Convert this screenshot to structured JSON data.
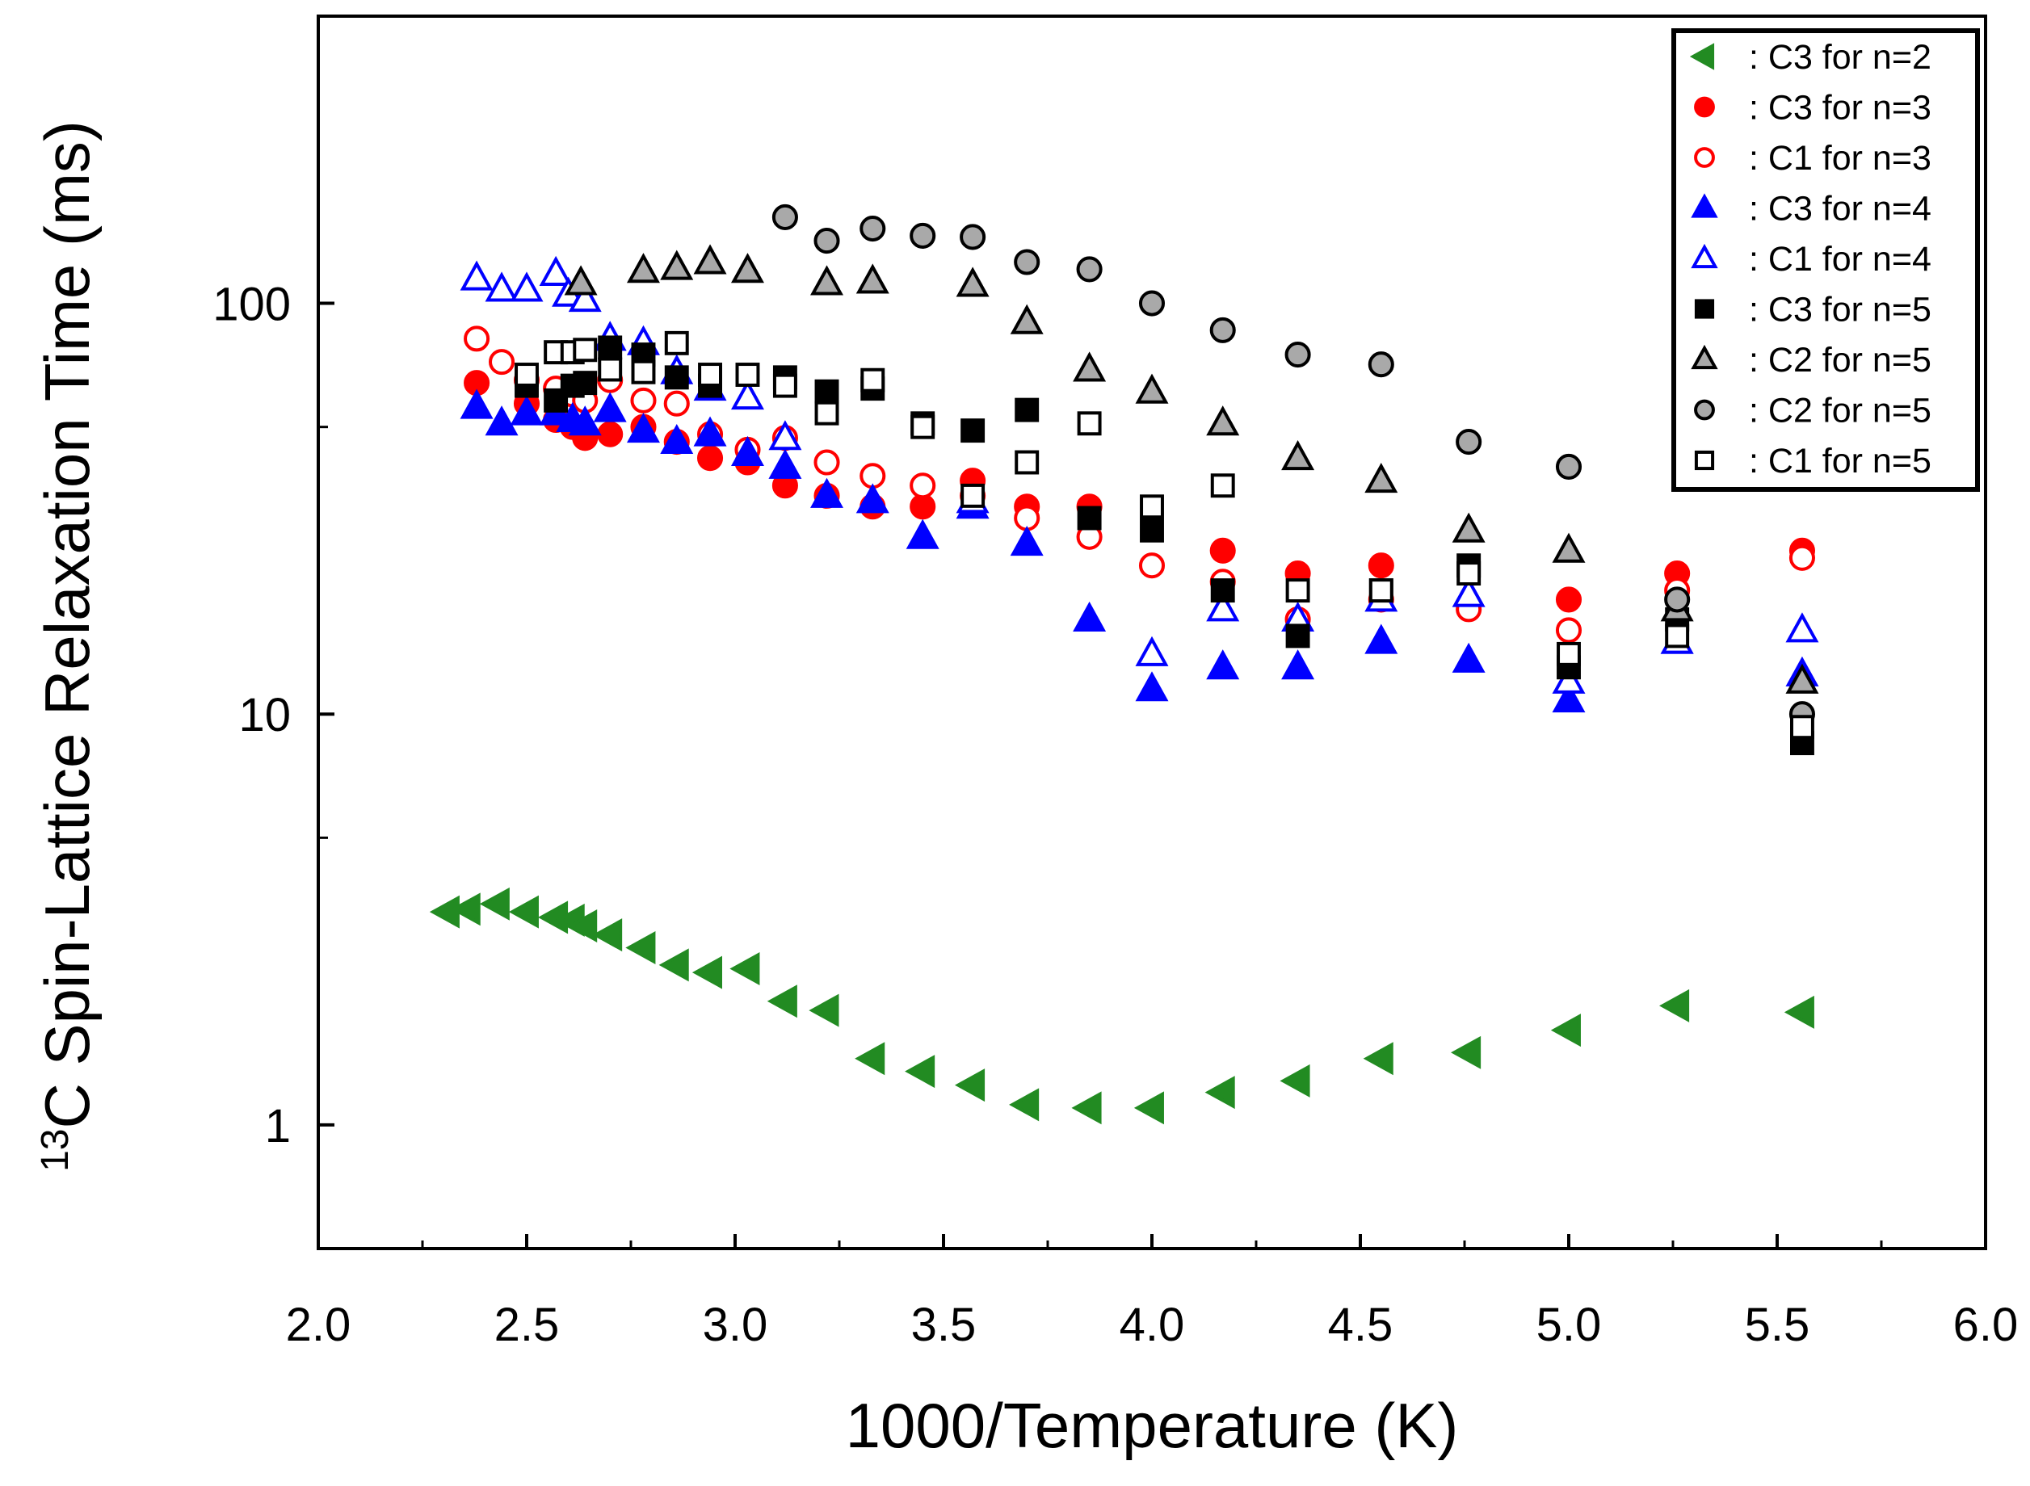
{
  "chart_data": {
    "type": "scatter",
    "title": "",
    "xlabel": "1000/Temperature (K)",
    "ylabel_sup": "13",
    "ylabel": "C Spin-Lattice Relaxation Time (ms)",
    "xlim": [
      2.0,
      6.0
    ],
    "ylim": [
      0.5,
      500
    ],
    "yscale": "log",
    "grid": false,
    "legend_position": "top-right",
    "x_ticks": [
      "2.0",
      "2.5",
      "3.0",
      "3.5",
      "4.0",
      "4.5",
      "5.0",
      "5.5",
      "6.0"
    ],
    "y_ticks": [
      "1",
      "10",
      "100"
    ],
    "series": [
      {
        "name": ": C3 for n=2",
        "marker": "triangle-left",
        "color": "#228b22",
        "filled": true,
        "points": [
          [
            2.31,
            3.3
          ],
          [
            2.36,
            3.35
          ],
          [
            2.43,
            3.45
          ],
          [
            2.5,
            3.3
          ],
          [
            2.57,
            3.2
          ],
          [
            2.61,
            3.15
          ],
          [
            2.64,
            3.05
          ],
          [
            2.7,
            2.9
          ],
          [
            2.78,
            2.7
          ],
          [
            2.86,
            2.45
          ],
          [
            2.94,
            2.35
          ],
          [
            3.03,
            2.4
          ],
          [
            3.12,
            2.0
          ],
          [
            3.22,
            1.9
          ],
          [
            3.33,
            1.45
          ],
          [
            3.45,
            1.35
          ],
          [
            3.57,
            1.25
          ],
          [
            3.7,
            1.12
          ],
          [
            3.85,
            1.1
          ],
          [
            4.0,
            1.1
          ],
          [
            4.17,
            1.2
          ],
          [
            4.35,
            1.28
          ],
          [
            4.55,
            1.45
          ],
          [
            4.76,
            1.5
          ],
          [
            5.0,
            1.7
          ],
          [
            5.26,
            1.95
          ],
          [
            5.56,
            1.88
          ]
        ]
      },
      {
        "name": ": C3 for n=3",
        "marker": "circle",
        "color": "#ff0000",
        "filled": true,
        "points": [
          [
            2.38,
            64
          ],
          [
            2.5,
            57
          ],
          [
            2.57,
            52
          ],
          [
            2.61,
            50
          ],
          [
            2.64,
            47
          ],
          [
            2.7,
            48
          ],
          [
            2.78,
            50
          ],
          [
            2.86,
            46
          ],
          [
            2.94,
            42
          ],
          [
            3.03,
            41
          ],
          [
            3.12,
            36
          ],
          [
            3.22,
            34
          ],
          [
            3.33,
            32
          ],
          [
            3.45,
            32
          ],
          [
            3.57,
            37
          ],
          [
            3.7,
            32
          ],
          [
            3.85,
            32
          ],
          [
            4.17,
            25
          ],
          [
            4.35,
            22
          ],
          [
            4.55,
            23
          ],
          [
            5.0,
            19
          ],
          [
            5.26,
            22
          ],
          [
            5.56,
            25
          ]
        ]
      },
      {
        "name": ": C1 for n=3",
        "marker": "circle",
        "color": "#ff0000",
        "filled": false,
        "points": [
          [
            2.38,
            82
          ],
          [
            2.44,
            72
          ],
          [
            2.5,
            65
          ],
          [
            2.57,
            62
          ],
          [
            2.61,
            60
          ],
          [
            2.64,
            58
          ],
          [
            2.7,
            65
          ],
          [
            2.78,
            58
          ],
          [
            2.86,
            57
          ],
          [
            2.94,
            48
          ],
          [
            3.03,
            44
          ],
          [
            3.12,
            47
          ],
          [
            3.22,
            41
          ],
          [
            3.33,
            38
          ],
          [
            3.45,
            36
          ],
          [
            3.57,
            34
          ],
          [
            3.7,
            30
          ],
          [
            3.85,
            27
          ],
          [
            4.0,
            23
          ],
          [
            4.17,
            21
          ],
          [
            4.35,
            17
          ],
          [
            4.55,
            19
          ],
          [
            4.76,
            18
          ],
          [
            5.0,
            16
          ],
          [
            5.26,
            20
          ],
          [
            5.56,
            24
          ]
        ]
      },
      {
        "name": ": C3 for n=4",
        "marker": "triangle-up",
        "color": "#0000ff",
        "filled": true,
        "points": [
          [
            2.38,
            56
          ],
          [
            2.44,
            51
          ],
          [
            2.5,
            54
          ],
          [
            2.57,
            54
          ],
          [
            2.61,
            52
          ],
          [
            2.64,
            51
          ],
          [
            2.7,
            55
          ],
          [
            2.78,
            49
          ],
          [
            2.86,
            46
          ],
          [
            2.94,
            48
          ],
          [
            3.03,
            43
          ],
          [
            3.12,
            40
          ],
          [
            3.22,
            34
          ],
          [
            3.33,
            33
          ],
          [
            3.45,
            27
          ],
          [
            3.57,
            32
          ],
          [
            3.7,
            26
          ],
          [
            3.85,
            17
          ],
          [
            4.0,
            11.5
          ],
          [
            4.17,
            13
          ],
          [
            4.35,
            13
          ],
          [
            4.55,
            15
          ],
          [
            4.76,
            13.5
          ],
          [
            5.0,
            10.8
          ],
          [
            5.26,
            15
          ],
          [
            5.56,
            12.5
          ]
        ]
      },
      {
        "name": ": C1 for n=4",
        "marker": "triangle-up",
        "color": "#0000ff",
        "filled": false,
        "points": [
          [
            2.38,
            115
          ],
          [
            2.44,
            108
          ],
          [
            2.5,
            108
          ],
          [
            2.57,
            118
          ],
          [
            2.6,
            105
          ],
          [
            2.64,
            102
          ],
          [
            2.7,
            82
          ],
          [
            2.78,
            80
          ],
          [
            2.86,
            68
          ],
          [
            2.94,
            62
          ],
          [
            3.03,
            59
          ],
          [
            3.12,
            47
          ],
          [
            3.57,
            33
          ],
          [
            4.0,
            14
          ],
          [
            4.17,
            18
          ],
          [
            4.35,
            17
          ],
          [
            4.55,
            19
          ],
          [
            4.76,
            19.5
          ],
          [
            5.0,
            12
          ],
          [
            5.26,
            15
          ],
          [
            5.56,
            16
          ]
        ]
      },
      {
        "name": ": C3 for n=5",
        "marker": "square",
        "color": "#000000",
        "filled": true,
        "points": [
          [
            2.5,
            63
          ],
          [
            2.57,
            58
          ],
          [
            2.61,
            63
          ],
          [
            2.64,
            64
          ],
          [
            2.7,
            78
          ],
          [
            2.78,
            75
          ],
          [
            2.86,
            66
          ],
          [
            2.94,
            63
          ],
          [
            3.12,
            66
          ],
          [
            3.22,
            61
          ],
          [
            3.33,
            62
          ],
          [
            3.45,
            51
          ],
          [
            3.57,
            49
          ],
          [
            3.7,
            55
          ],
          [
            3.85,
            30
          ],
          [
            4.0,
            28
          ],
          [
            4.17,
            20
          ],
          [
            4.35,
            15.5
          ],
          [
            4.55,
            20
          ],
          [
            4.76,
            23
          ],
          [
            5.0,
            13
          ],
          [
            5.26,
            17
          ],
          [
            5.56,
            8.5
          ]
        ]
      },
      {
        "name": ": C2 for n=5",
        "marker": "triangle-up",
        "color": "#000000",
        "fill": "#a9a9a9",
        "filled": true,
        "points": [
          [
            2.63,
            112
          ],
          [
            2.78,
            120
          ],
          [
            2.86,
            122
          ],
          [
            2.94,
            126
          ],
          [
            3.03,
            120
          ],
          [
            3.22,
            112
          ],
          [
            3.33,
            113
          ],
          [
            3.57,
            111
          ],
          [
            3.7,
            90
          ],
          [
            3.85,
            69
          ],
          [
            4.0,
            61
          ],
          [
            4.17,
            51
          ],
          [
            4.35,
            42
          ],
          [
            4.55,
            37
          ],
          [
            4.76,
            28
          ],
          [
            5.0,
            25
          ],
          [
            5.26,
            18
          ],
          [
            5.56,
            12
          ]
        ]
      },
      {
        "name": ": C2 for n=5",
        "marker": "circle",
        "color": "#000000",
        "fill": "#a9a9a9",
        "filled": true,
        "points": [
          [
            3.12,
            162
          ],
          [
            3.22,
            142
          ],
          [
            3.33,
            152
          ],
          [
            3.45,
            146
          ],
          [
            3.57,
            145
          ],
          [
            3.7,
            126
          ],
          [
            3.85,
            121
          ],
          [
            4.0,
            100
          ],
          [
            4.17,
            86
          ],
          [
            4.35,
            75
          ],
          [
            4.55,
            71
          ],
          [
            4.76,
            46
          ],
          [
            5.0,
            40
          ],
          [
            5.26,
            19
          ],
          [
            5.56,
            10
          ]
        ]
      },
      {
        "name": ": C1 for n=5",
        "marker": "square",
        "color": "#000000",
        "filled": false,
        "points": [
          [
            2.5,
            67
          ],
          [
            2.57,
            76
          ],
          [
            2.61,
            76
          ],
          [
            2.64,
            77
          ],
          [
            2.7,
            69
          ],
          [
            2.78,
            68
          ],
          [
            2.86,
            80
          ],
          [
            2.94,
            67
          ],
          [
            3.03,
            67
          ],
          [
            3.12,
            63
          ],
          [
            3.22,
            54
          ],
          [
            3.33,
            65
          ],
          [
            3.45,
            50
          ],
          [
            3.57,
            34
          ],
          [
            3.7,
            41
          ],
          [
            3.85,
            51
          ],
          [
            4.0,
            32
          ],
          [
            4.17,
            36
          ],
          [
            4.35,
            20
          ],
          [
            4.55,
            20
          ],
          [
            4.76,
            22
          ],
          [
            5.0,
            14
          ],
          [
            5.26,
            15.5
          ],
          [
            5.56,
            9.3
          ]
        ]
      }
    ]
  }
}
